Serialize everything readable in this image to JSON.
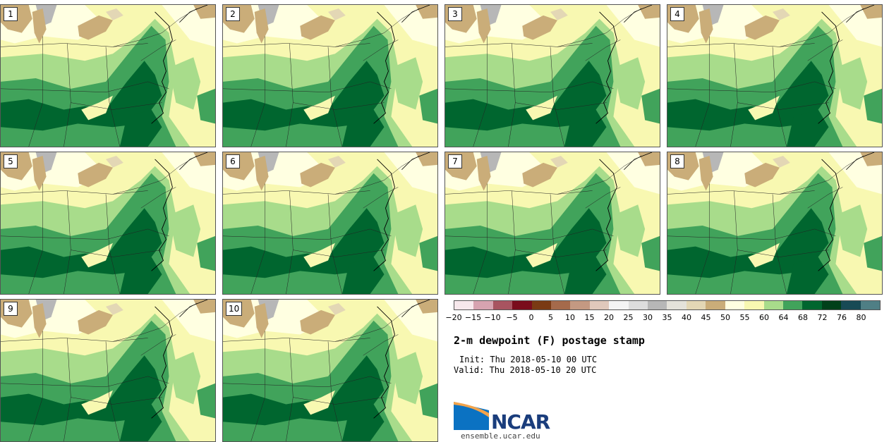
{
  "panels": [
    {
      "label": "1"
    },
    {
      "label": "2"
    },
    {
      "label": "3"
    },
    {
      "label": "4"
    },
    {
      "label": "5"
    },
    {
      "label": "6"
    },
    {
      "label": "7"
    },
    {
      "label": "8"
    },
    {
      "label": "9"
    },
    {
      "label": "10"
    }
  ],
  "colorbar": {
    "ticks": [
      "−20",
      "−15",
      "−10",
      "−5",
      "0",
      "5",
      "10",
      "15",
      "20",
      "25",
      "30",
      "35",
      "40",
      "45",
      "50",
      "55",
      "60",
      "64",
      "68",
      "72",
      "76",
      "80"
    ],
    "colors": [
      "#f7e8ec",
      "#d7a3b0",
      "#a85460",
      "#7a0d1c",
      "#7a3a13",
      "#a56a4b",
      "#c49982",
      "#e0c8bb",
      "#f4f4f4",
      "#dddddd",
      "#b7b7b7",
      "#e4e2da",
      "#e3d7b5",
      "#caad79",
      "#ffffe1",
      "#f8f8b1",
      "#a8dc8b",
      "#41a35b",
      "#00662f",
      "#00401a",
      "#174a55",
      "#4f7f85"
    ]
  },
  "title": "2-m dewpoint (F) postage stamp",
  "init": "Init: Thu 2018-05-10 00 UTC",
  "valid": "Valid: Thu 2018-05-10 20 UTC",
  "logo_text": "NCAR",
  "site": "ensemble.ucar.edu"
}
